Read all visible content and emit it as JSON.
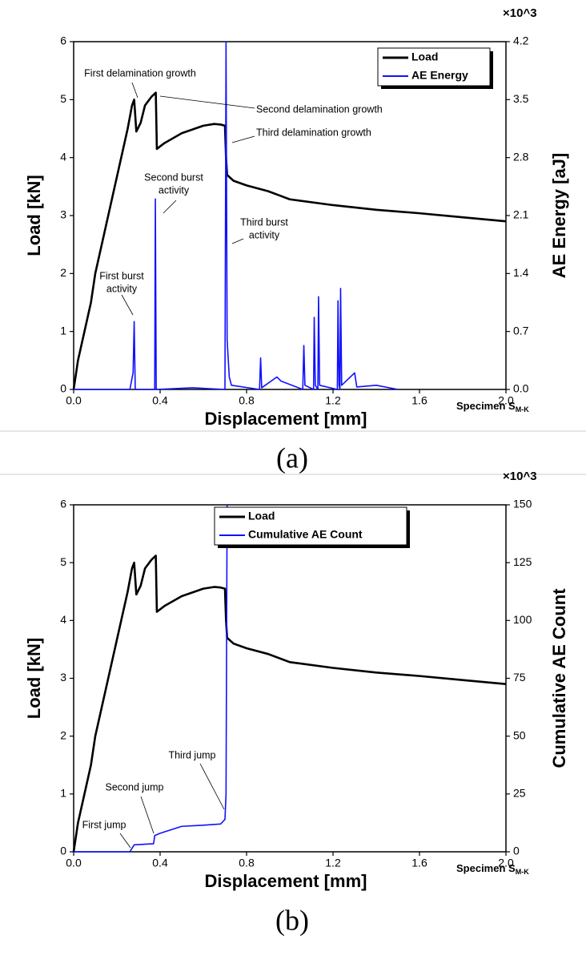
{
  "chart_data": [
    {
      "type": "line",
      "x_label": "Displacement [mm]",
      "y_label": "Load [kN]",
      "y2_label": "AE Energy [aJ]",
      "y2_multiplier": "×10^3",
      "specimen_label": "Specimen S",
      "specimen_subscript": "M-K",
      "caption": "(a)",
      "xlim": [
        0,
        2
      ],
      "xticks": [
        {
          "value": 0,
          "label": "0.0"
        },
        {
          "value": 0.4,
          "label": "0.4"
        },
        {
          "value": 0.8,
          "label": "0.8"
        },
        {
          "value": 1.2,
          "label": "1.2"
        },
        {
          "value": 1.6,
          "label": "1.6"
        },
        {
          "value": 2,
          "label": "2.0"
        }
      ],
      "ylim": [
        0,
        6
      ],
      "yticks": [
        0,
        1,
        2,
        3,
        4,
        5,
        6
      ],
      "y2lim": [
        0,
        4.2
      ],
      "y2ticks": [
        {
          "value": 0,
          "label": "0.0"
        },
        {
          "value": 0.7,
          "label": "0.7"
        },
        {
          "value": 1.4,
          "label": "1.4"
        },
        {
          "value": 2.1,
          "label": "2.1"
        },
        {
          "value": 2.8,
          "label": "2.8"
        },
        {
          "value": 3.5,
          "label": "3.5"
        },
        {
          "value": 4.2,
          "label": "4.2"
        }
      ],
      "series": [
        {
          "name": "Load",
          "color": "#000000",
          "x": [
            0,
            0.02,
            0.05,
            0.08,
            0.1,
            0.13,
            0.16,
            0.19,
            0.22,
            0.25,
            0.27,
            0.28,
            0.29,
            0.31,
            0.33,
            0.36,
            0.38,
            0.385,
            0.42,
            0.5,
            0.6,
            0.65,
            0.68,
            0.7,
            0.705,
            0.71,
            0.74,
            0.8,
            0.9,
            0.95,
            1.0,
            1.2,
            1.4,
            1.6,
            1.8,
            2.0
          ],
          "values": [
            0,
            0.5,
            1.0,
            1.5,
            2.0,
            2.5,
            3.0,
            3.5,
            4.0,
            4.5,
            4.9,
            5.0,
            4.45,
            4.6,
            4.9,
            5.05,
            5.12,
            4.15,
            4.25,
            4.42,
            4.55,
            4.58,
            4.57,
            4.55,
            4.0,
            3.7,
            3.6,
            3.52,
            3.42,
            3.35,
            3.28,
            3.18,
            3.1,
            3.04,
            2.97,
            2.9
          ]
        },
        {
          "name": "AE Energy",
          "color": "#1010ff",
          "axis": "y2",
          "x": [
            0,
            0.26,
            0.275,
            0.28,
            0.285,
            0.375,
            0.378,
            0.382,
            0.55,
            0.7,
            0.705,
            0.71,
            0.72,
            0.73,
            0.86,
            0.865,
            0.87,
            0.94,
            0.96,
            1.06,
            1.065,
            1.07,
            1.11,
            1.113,
            1.118,
            1.13,
            1.133,
            1.138,
            1.22,
            1.223,
            1.228,
            1.232,
            1.235,
            1.24,
            1.3,
            1.31,
            1.4,
            1.5
          ],
          "values": [
            0,
            0,
            0.2,
            0.82,
            0,
            0,
            2.3,
            0,
            0.02,
            0,
            4.2,
            0.6,
            0.15,
            0.05,
            0,
            0.38,
            0.02,
            0.15,
            0.1,
            0,
            0.53,
            0.05,
            0,
            0.87,
            0.05,
            0,
            1.12,
            0.05,
            0,
            1.07,
            0.05,
            0,
            1.22,
            0.05,
            0.2,
            0.03,
            0.05,
            0
          ]
        }
      ],
      "annotations": [
        [
          "First delamination growth"
        ],
        [
          "Second delamination growth"
        ],
        [
          "Third delamination growth"
        ],
        [
          "Second burst",
          "activity"
        ],
        [
          "Third burst",
          "activity"
        ],
        [
          "First burst",
          "activity"
        ]
      ]
    },
    {
      "type": "line",
      "x_label": "Displacement [mm]",
      "y_label": "Load [kN]",
      "y2_label": "Cumulative AE Count",
      "y2_multiplier": "×10^3",
      "specimen_label": "Specimen S",
      "specimen_subscript": "M-K",
      "caption": "(b)",
      "xlim": [
        0,
        2
      ],
      "xticks": [
        {
          "value": 0,
          "label": "0.0"
        },
        {
          "value": 0.4,
          "label": "0.4"
        },
        {
          "value": 0.8,
          "label": "0.8"
        },
        {
          "value": 1.2,
          "label": "1.2"
        },
        {
          "value": 1.6,
          "label": "1.6"
        },
        {
          "value": 2,
          "label": "2.0"
        }
      ],
      "ylim": [
        0,
        6
      ],
      "yticks": [
        0,
        1,
        2,
        3,
        4,
        5,
        6
      ],
      "y2lim": [
        0,
        150
      ],
      "y2ticks": [
        0,
        25,
        50,
        75,
        100,
        125,
        150
      ],
      "series": [
        {
          "name": "Load",
          "color": "#000000",
          "x": [
            0,
            0.02,
            0.05,
            0.08,
            0.1,
            0.13,
            0.16,
            0.19,
            0.22,
            0.25,
            0.27,
            0.28,
            0.29,
            0.31,
            0.33,
            0.36,
            0.38,
            0.385,
            0.42,
            0.5,
            0.6,
            0.65,
            0.68,
            0.7,
            0.705,
            0.71,
            0.74,
            0.8,
            0.9,
            0.95,
            1.0,
            1.2,
            1.4,
            1.6,
            1.8,
            2.0
          ],
          "values": [
            0,
            0.5,
            1.0,
            1.5,
            2.0,
            2.5,
            3.0,
            3.5,
            4.0,
            4.5,
            4.9,
            5.0,
            4.45,
            4.6,
            4.9,
            5.05,
            5.12,
            4.15,
            4.25,
            4.42,
            4.55,
            4.58,
            4.57,
            4.55,
            4.0,
            3.7,
            3.6,
            3.52,
            3.42,
            3.35,
            3.28,
            3.18,
            3.1,
            3.04,
            2.97,
            2.9
          ]
        },
        {
          "name": "Cumulative AE Count",
          "color": "#1010ff",
          "axis": "y2",
          "x": [
            0,
            0.26,
            0.28,
            0.37,
            0.375,
            0.4,
            0.5,
            0.6,
            0.68,
            0.7,
            0.705,
            0.71
          ],
          "values": [
            0,
            0,
            3,
            3.5,
            7,
            8,
            11,
            11.5,
            12,
            14,
            25,
            150
          ]
        }
      ],
      "annotations": [
        [
          "First jump"
        ],
        [
          "Second jump"
        ],
        [
          "Third jump"
        ]
      ]
    }
  ]
}
